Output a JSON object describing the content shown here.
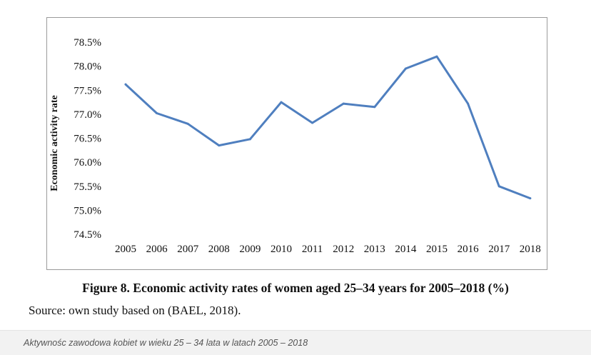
{
  "chart_data": {
    "type": "line",
    "categories": [
      "2005",
      "2006",
      "2007",
      "2008",
      "2009",
      "2010",
      "2011",
      "2012",
      "2013",
      "2014",
      "2015",
      "2016",
      "2017",
      "2018"
    ],
    "series": [
      {
        "values": [
          77.62,
          77.02,
          76.8,
          76.35,
          76.48,
          77.25,
          76.82,
          77.22,
          77.15,
          77.95,
          78.2,
          77.22,
          75.5,
          75.25
        ]
      }
    ],
    "ylabel": "Economic activity rate",
    "xlabel": "",
    "ylim": [
      74.5,
      78.5
    ],
    "yticks": [
      "74.5%",
      "75.0%",
      "75.5%",
      "76.0%",
      "76.5%",
      "77.0%",
      "77.5%",
      "78.0%",
      "78.5%"
    ],
    "ytick_values": [
      74.5,
      75.0,
      75.5,
      76.0,
      76.5,
      77.0,
      77.5,
      78.0,
      78.5
    ],
    "grid": false,
    "line_color": "#4f7fbf"
  },
  "caption": "Figure 8. Economic activity rates of women aged 25–34 years for 2005–2018 (%)",
  "source": "Source: own study based on (BAEL, 2018).",
  "image_caption": "Aktywnośc zawodowa kobiet w wieku 25 – 34 lata w latach 2005 – 2018"
}
